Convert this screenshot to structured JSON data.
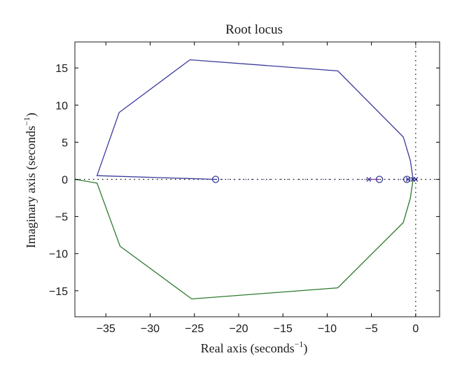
{
  "chart_data": {
    "type": "line",
    "title": "Root locus",
    "xlabel": "Real axis (seconds",
    "ylabel": "Imaginary axis (seconds",
    "label_superscript": "−1",
    "xlim": [
      -38.5,
      2.7
    ],
    "ylim": [
      -18.5,
      18.5
    ],
    "xticks": [
      -35,
      -30,
      -25,
      -20,
      -15,
      -10,
      -5,
      0
    ],
    "yticks": [
      -15,
      -10,
      -5,
      0,
      5,
      10,
      15
    ],
    "xtick_labels": [
      "−35",
      "−30",
      "−25",
      "−20",
      "−15",
      "−10",
      "−5",
      "0"
    ],
    "ytick_labels": [
      "−15",
      "−10",
      "−5",
      "0",
      "5",
      "10",
      "15"
    ],
    "grid": false,
    "series": [
      {
        "color": "#3a3a9a",
        "style": "solid",
        "x": [
          -0.3,
          -0.6,
          -1.4,
          -8.8,
          -25.5,
          -33.5,
          -36.0,
          -22.6
        ],
        "y": [
          0,
          2.5,
          5.7,
          14.6,
          16.1,
          9.0,
          0.5,
          0
        ]
      },
      {
        "color": "#2d7a2d",
        "style": "solid",
        "x": [
          -0.3,
          -0.6,
          -1.4,
          -8.8,
          -25.3,
          -33.4,
          -36.0,
          -38.5
        ],
        "y": [
          0,
          -2.5,
          -5.8,
          -14.6,
          -16.1,
          -9.0,
          -0.5,
          0
        ]
      },
      {
        "color": "#8a3a8a",
        "style": "solid",
        "x": [
          -5.3,
          -4.1
        ],
        "y": [
          0,
          0
        ]
      },
      {
        "color": "#3a3a9a",
        "style": "dotted",
        "x": [
          -22.6,
          -0.3
        ],
        "y": [
          0,
          0
        ]
      }
    ],
    "poles": [
      {
        "x": -5.3,
        "y": 0
      },
      {
        "x": -0.85,
        "y": 0
      },
      {
        "x": -0.3,
        "y": 0
      },
      {
        "x": 0,
        "y": 0
      }
    ],
    "zeros": [
      {
        "x": -22.6,
        "y": 0
      },
      {
        "x": -4.1,
        "y": 0
      },
      {
        "x": -1.0,
        "y": 0
      }
    ],
    "reference_lines": [
      {
        "orientation": "vertical",
        "value": 0,
        "style": "dotted"
      },
      {
        "orientation": "horizontal",
        "value": 0,
        "style": "dotted"
      }
    ],
    "colors": {
      "upper_branch": "#3a3a9a",
      "lower_branch": "#2d7a2d",
      "short_branch": "#8a3a8a",
      "axes": "#1a1a1a",
      "markers": "#3a3a9a"
    }
  }
}
